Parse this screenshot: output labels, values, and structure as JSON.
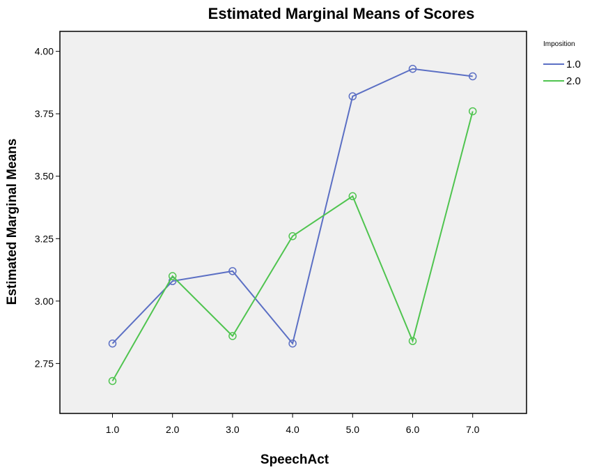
{
  "chart_data": {
    "type": "line",
    "title": "Estimated Marginal Means of Scores",
    "xlabel": "SpeechAct",
    "ylabel": "Estimated Marginal Means",
    "categories": [
      "1.0",
      "2.0",
      "3.0",
      "4.0",
      "5.0",
      "6.0",
      "7.0"
    ],
    "ylim": [
      2.55,
      4.08
    ],
    "yticks": [
      "2.75",
      "3.00",
      "3.25",
      "3.50",
      "3.75",
      "4.00"
    ],
    "grid": false,
    "legend": {
      "title": "Imposition",
      "position": "top-right"
    },
    "series": [
      {
        "name": "1.0",
        "color": "#5b6fc4",
        "values": [
          2.83,
          3.08,
          3.12,
          2.83,
          3.82,
          3.93,
          3.9
        ]
      },
      {
        "name": "2.0",
        "color": "#4fc44f",
        "values": [
          2.68,
          3.1,
          2.86,
          3.26,
          3.42,
          2.84,
          3.76
        ]
      }
    ],
    "plot_background": "#f0f0f0"
  }
}
